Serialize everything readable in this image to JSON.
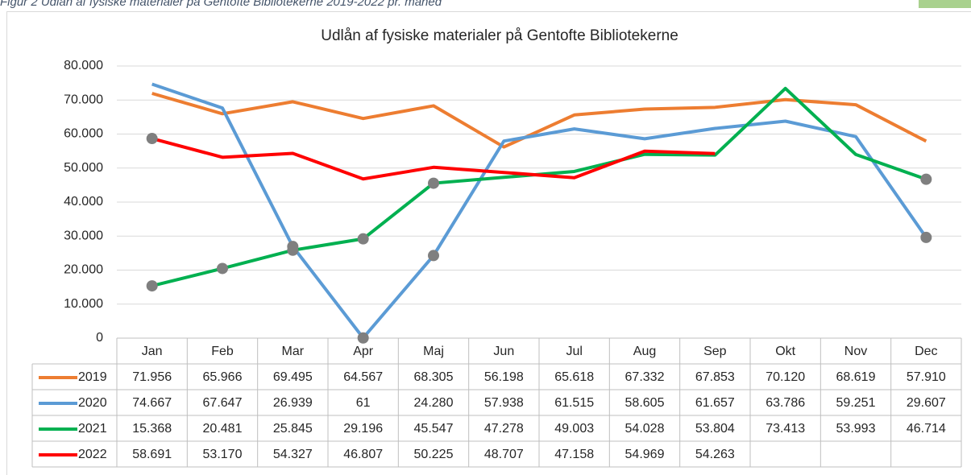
{
  "caption": "Figur 2 Udlån af fysiske materialer på Gentofte Bibliotekerne 2019-2022 pr. måned",
  "chart_data": {
    "type": "line",
    "title": "Udlån af fysiske materialer på Gentofte Bibliotekerne",
    "categories": [
      "Jan",
      "Feb",
      "Mar",
      "Apr",
      "Maj",
      "Jun",
      "Jul",
      "Aug",
      "Sep",
      "Okt",
      "Nov",
      "Dec"
    ],
    "ylim": [
      0,
      80000
    ],
    "yticks": [
      0,
      {
        "value": 10000,
        "label": "10.000"
      },
      {
        "value": 20000,
        "label": "20.000"
      },
      {
        "value": 30000,
        "label": "30.000"
      },
      {
        "value": 40000,
        "label": "40.000"
      },
      {
        "value": 50000,
        "label": "50.000"
      },
      {
        "value": 60000,
        "label": "60.000"
      },
      {
        "value": 70000,
        "label": "70.000"
      },
      {
        "value": 80000,
        "label": "80.000"
      }
    ],
    "grid": true,
    "marker_color": "#7f7f7f",
    "series": [
      {
        "name": "2019",
        "color": "#ed7d31",
        "values": [
          71956,
          65966,
          69495,
          64567,
          68305,
          56198,
          65618,
          67332,
          67853,
          70120,
          68619,
          57910
        ],
        "value_labels": [
          "71.956",
          "65.966",
          "69.495",
          "64.567",
          "68.305",
          "56.198",
          "65.618",
          "67.332",
          "67.853",
          "70.120",
          "68.619",
          "57.910"
        ],
        "markers": []
      },
      {
        "name": "2020",
        "color": "#5b9bd5",
        "values": [
          74667,
          67647,
          26939,
          61,
          24280,
          57938,
          61515,
          58605,
          61657,
          63786,
          59251,
          29607
        ],
        "value_labels": [
          "74.667",
          "67.647",
          "26.939",
          "61",
          "24.280",
          "57.938",
          "61.515",
          "58.605",
          "61.657",
          "63.786",
          "59.251",
          "29.607"
        ],
        "markers": [
          2,
          3,
          4,
          11
        ]
      },
      {
        "name": "2021",
        "color": "#00b050",
        "values": [
          15368,
          20481,
          25845,
          29196,
          45547,
          47278,
          49003,
          54028,
          53804,
          73413,
          53993,
          46714
        ],
        "value_labels": [
          "15.368",
          "20.481",
          "25.845",
          "29.196",
          "45.547",
          "47.278",
          "49.003",
          "54.028",
          "53.804",
          "73.413",
          "53.993",
          "46.714"
        ],
        "markers": [
          0,
          1,
          2,
          3,
          4,
          11
        ]
      },
      {
        "name": "2022",
        "color": "#ff0000",
        "values": [
          58691,
          53170,
          54327,
          46807,
          50225,
          48707,
          47158,
          54969,
          54263,
          null,
          null,
          null
        ],
        "value_labels": [
          "58.691",
          "53.170",
          "54.327",
          "46.807",
          "50.225",
          "48.707",
          "47.158",
          "54.969",
          "54.263",
          null,
          null,
          null
        ],
        "markers": [
          0
        ]
      }
    ]
  }
}
